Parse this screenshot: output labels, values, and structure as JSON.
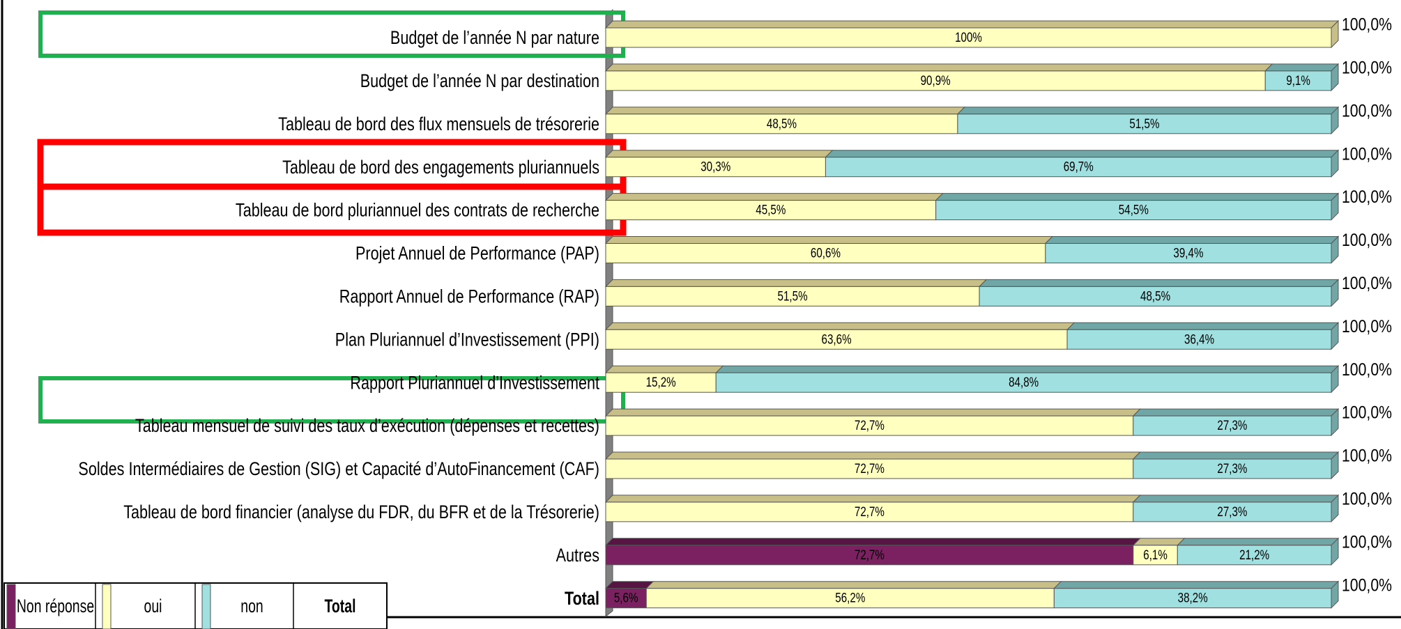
{
  "chart_data": {
    "type": "stacked-bar-horizontal",
    "categories": [
      "Budget de l’année N par nature",
      "Budget de l’année N par destination",
      "Tableau de bord des flux mensuels de trésorerie",
      "Tableau de bord des engagements pluriannuels",
      "Tableau de bord pluriannuel des contrats de recherche",
      "Projet Annuel de Performance (PAP)",
      "Rapport Annuel de Performance (RAP)",
      "Plan Pluriannuel d’Investissement (PPI)",
      "Rapport Pluriannuel d’Investissement",
      "Tableau mensuel de suivi des taux d’exécution (dépenses et recettes)",
      "Soldes Intermédiaires de Gestion (SIG) et Capacité d’AutoFinancement (CAF)",
      "Tableau de bord financier (analyse du FDR, du BFR et de la Trésorerie)",
      "Autres",
      "Total"
    ],
    "series": [
      {
        "name": "Non réponse",
        "color": "#7b2060",
        "top_color": "#561543",
        "values": [
          null,
          null,
          null,
          null,
          null,
          null,
          null,
          null,
          null,
          null,
          null,
          null,
          72.7,
          5.6
        ],
        "value_labels": [
          null,
          null,
          null,
          null,
          null,
          null,
          null,
          null,
          null,
          null,
          null,
          null,
          "72,7%",
          "5,6%"
        ]
      },
      {
        "name": "oui",
        "color": "#ffffc0",
        "top_color": "#c8bf88",
        "values": [
          100,
          90.9,
          48.5,
          30.3,
          45.5,
          60.6,
          51.5,
          63.6,
          15.2,
          72.7,
          72.7,
          72.7,
          6.1,
          56.2
        ],
        "value_labels": [
          "100%",
          "90,9%",
          "48,5%",
          "30,3%",
          "45,5%",
          "60,6%",
          "51,5%",
          "63,6%",
          "15,2%",
          "72,7%",
          "72,7%",
          "72,7%",
          "6,1%",
          "56,2%"
        ]
      },
      {
        "name": "non",
        "color": "#a0e0e0",
        "top_color": "#70a6a6",
        "values": [
          null,
          9.1,
          51.5,
          69.7,
          54.5,
          39.4,
          48.5,
          36.4,
          84.8,
          27.3,
          27.3,
          27.3,
          21.2,
          38.2
        ],
        "value_labels": [
          null,
          "9,1%",
          "51,5%",
          "69,7%",
          "54,5%",
          "39,4%",
          "48,5%",
          "36,4%",
          "84,8%",
          "27,3%",
          "27,3%",
          "27,3%",
          "21,2%",
          "38,2%"
        ]
      }
    ],
    "total": {
      "name": "Total",
      "values": [
        100,
        100,
        100,
        100,
        100,
        100,
        100,
        100,
        100,
        100,
        100,
        100,
        100,
        100
      ],
      "value_labels": [
        "100,0%",
        "100,0%",
        "100,0%",
        "100,0%",
        "100,0%",
        "100,0%",
        "100,0%",
        "100,0%",
        "100,0%",
        "100,0%",
        "100,0%",
        "100,0%",
        "100,0%",
        "100,0%"
      ]
    },
    "xlim": [
      0,
      100
    ]
  }
}
